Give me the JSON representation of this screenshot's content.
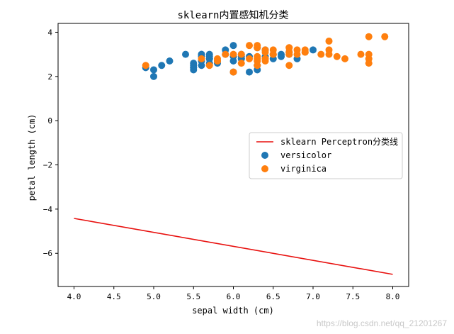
{
  "chart_data": {
    "type": "scatter",
    "title": "sklearn内置感知机分类",
    "xlabel": "sepal width (cm)",
    "ylabel": "petal length (cm)",
    "xlim": [
      3.8,
      8.2
    ],
    "ylim": [
      -7.5,
      4.4
    ],
    "xticks": [
      "4.0",
      "4.5",
      "5.0",
      "5.5",
      "6.0",
      "6.5",
      "7.0",
      "7.5",
      "8.0"
    ],
    "yticks": [
      "4",
      "2",
      "0",
      "−2",
      "−4",
      "−6"
    ],
    "grid": false,
    "legend_position": "center-right",
    "line": {
      "name": "sklearn Perceptron分类线",
      "color": "#e8110f",
      "x": [
        4.0,
        8.0
      ],
      "y": [
        -4.42,
        -6.95
      ]
    },
    "series": [
      {
        "name": "versicolor",
        "color": "#1f77b4",
        "points": [
          [
            7.0,
            3.2
          ],
          [
            6.4,
            3.2
          ],
          [
            6.9,
            3.1
          ],
          [
            5.5,
            2.3
          ],
          [
            6.5,
            2.8
          ],
          [
            5.7,
            2.8
          ],
          [
            6.3,
            3.3
          ],
          [
            4.9,
            2.4
          ],
          [
            6.6,
            2.9
          ],
          [
            5.2,
            2.7
          ],
          [
            5.0,
            2.0
          ],
          [
            5.9,
            3.0
          ],
          [
            6.0,
            2.2
          ],
          [
            6.1,
            2.9
          ],
          [
            5.6,
            2.9
          ],
          [
            6.7,
            3.1
          ],
          [
            5.6,
            3.0
          ],
          [
            5.8,
            2.7
          ],
          [
            6.2,
            2.2
          ],
          [
            5.6,
            2.5
          ],
          [
            5.9,
            3.2
          ],
          [
            6.1,
            2.8
          ],
          [
            6.3,
            2.5
          ],
          [
            6.1,
            2.8
          ],
          [
            6.4,
            2.9
          ],
          [
            6.6,
            3.0
          ],
          [
            6.8,
            2.8
          ],
          [
            6.7,
            3.0
          ],
          [
            6.0,
            2.9
          ],
          [
            5.7,
            2.6
          ],
          [
            5.5,
            2.4
          ],
          [
            5.5,
            2.4
          ],
          [
            5.8,
            2.7
          ],
          [
            6.0,
            2.7
          ],
          [
            5.4,
            3.0
          ],
          [
            6.0,
            3.4
          ],
          [
            6.7,
            3.1
          ],
          [
            6.3,
            2.3
          ],
          [
            5.6,
            3.0
          ],
          [
            5.5,
            2.5
          ],
          [
            5.5,
            2.6
          ],
          [
            6.1,
            3.0
          ],
          [
            5.8,
            2.6
          ],
          [
            5.0,
            2.3
          ],
          [
            5.6,
            2.7
          ],
          [
            5.7,
            3.0
          ],
          [
            5.7,
            2.9
          ],
          [
            6.2,
            2.9
          ],
          [
            5.1,
            2.5
          ],
          [
            5.7,
            2.8
          ]
        ]
      },
      {
        "name": "virginica",
        "color": "#ff7f0e",
        "points": [
          [
            6.3,
            3.3
          ],
          [
            5.8,
            2.7
          ],
          [
            7.1,
            3.0
          ],
          [
            6.3,
            2.9
          ],
          [
            6.5,
            3.0
          ],
          [
            7.6,
            3.0
          ],
          [
            4.9,
            2.5
          ],
          [
            7.3,
            2.9
          ],
          [
            6.7,
            2.5
          ],
          [
            7.2,
            3.6
          ],
          [
            6.5,
            3.2
          ],
          [
            6.4,
            2.7
          ],
          [
            6.8,
            3.0
          ],
          [
            5.7,
            2.5
          ],
          [
            5.8,
            2.8
          ],
          [
            6.4,
            3.2
          ],
          [
            6.5,
            3.0
          ],
          [
            7.7,
            3.8
          ],
          [
            7.7,
            2.6
          ],
          [
            6.0,
            2.2
          ],
          [
            6.9,
            3.2
          ],
          [
            5.6,
            2.8
          ],
          [
            7.7,
            2.8
          ],
          [
            6.3,
            2.7
          ],
          [
            6.7,
            3.3
          ],
          [
            7.2,
            3.2
          ],
          [
            6.2,
            2.8
          ],
          [
            6.1,
            3.0
          ],
          [
            6.4,
            2.8
          ],
          [
            7.2,
            3.0
          ],
          [
            7.4,
            2.8
          ],
          [
            7.9,
            3.8
          ],
          [
            6.4,
            2.8
          ],
          [
            6.3,
            2.8
          ],
          [
            6.1,
            2.6
          ],
          [
            7.7,
            3.0
          ],
          [
            6.3,
            3.4
          ],
          [
            6.4,
            3.1
          ],
          [
            6.0,
            3.0
          ],
          [
            6.9,
            3.1
          ],
          [
            6.7,
            3.1
          ],
          [
            6.9,
            3.1
          ],
          [
            5.8,
            2.7
          ],
          [
            6.8,
            3.2
          ],
          [
            6.7,
            3.3
          ],
          [
            6.7,
            3.0
          ],
          [
            6.3,
            2.5
          ],
          [
            6.5,
            3.0
          ],
          [
            6.2,
            3.4
          ],
          [
            5.9,
            3.0
          ]
        ]
      }
    ]
  },
  "watermark": "https://blog.csdn.net/qq_21201267"
}
